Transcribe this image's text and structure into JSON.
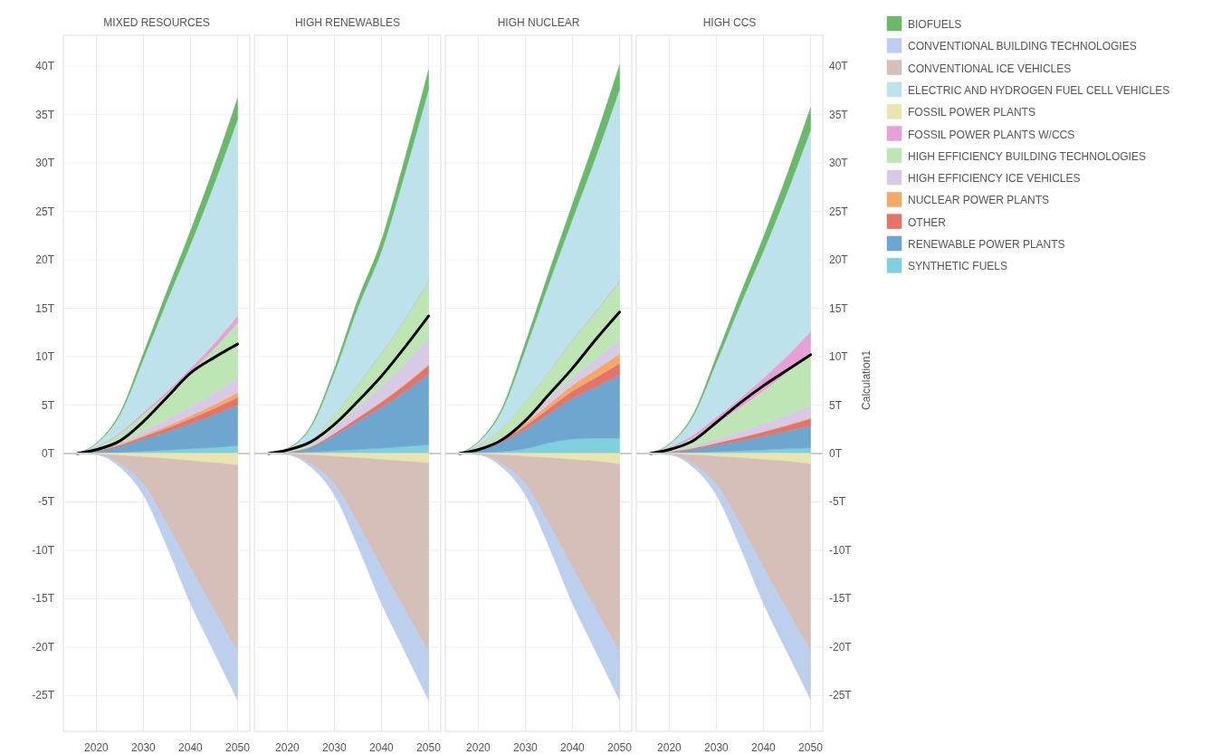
{
  "chart_data": [
    {
      "type": "area",
      "title": "MIXED RESOURCES",
      "stacked": true,
      "grid": true,
      "legend": "right",
      "tick_labels": "y",
      "x": [
        2016,
        2020,
        2025,
        2030,
        2035,
        2040,
        2045,
        2050
      ],
      "xlim": [
        2013,
        2052.6
      ],
      "xticks": [
        2020,
        2030,
        2040,
        2050
      ],
      "ylim": [
        0,
        43.2
      ],
      "yticks": [
        {
          "value": 0,
          "label": "0T"
        },
        {
          "value": 5,
          "label": "5T"
        },
        {
          "value": 10,
          "label": "10T"
        },
        {
          "value": 15,
          "label": "15T"
        },
        {
          "value": 20,
          "label": "20T"
        },
        {
          "value": 25,
          "label": "25T"
        },
        {
          "value": 30,
          "label": "30T"
        },
        {
          "value": 35,
          "label": "35T"
        },
        {
          "value": 40,
          "label": "40T"
        }
      ],
      "series": [
        {
          "name": "SYNTHETIC FUELS",
          "color": "#7dd0dc",
          "values": [
            0,
            0.04,
            0.12,
            0.24,
            0.36,
            0.5,
            0.64,
            0.8
          ]
        },
        {
          "name": "RENEWABLE POWER PLANTS",
          "color": "#6ea6cf",
          "values": [
            0,
            0.21,
            0.63,
            1.26,
            1.89,
            2.6,
            3.36,
            4.2
          ]
        },
        {
          "name": "OTHER",
          "color": "#e3746a",
          "values": [
            0,
            0.04,
            0.12,
            0.24,
            0.36,
            0.5,
            0.64,
            0.8
          ]
        },
        {
          "name": "NUCLEAR POWER PLANTS",
          "color": "#f5a968",
          "values": [
            0,
            0.03,
            0.08,
            0.15,
            0.23,
            0.31,
            0.4,
            0.5
          ]
        },
        {
          "name": "HIGH EFFICIENCY ICE VEHICLES",
          "color": "#d8c9e6",
          "values": [
            0,
            0.08,
            0.23,
            0.45,
            0.68,
            0.93,
            1.2,
            1.5
          ]
        },
        {
          "name": "HIGH EFFICIENCY BUILDING TECHNOLOGIES",
          "color": "#bde6b4",
          "values": [
            0,
            0.29,
            0.86,
            1.71,
            2.57,
            3.53,
            4.56,
            5.7
          ]
        },
        {
          "name": "FOSSIL POWER PLANTS W/CCS",
          "color": "#e7a1d6",
          "values": [
            0,
            0.04,
            0.11,
            0.21,
            0.32,
            0.43,
            0.56,
            0.7
          ]
        },
        {
          "name": "ELECTRIC AND HYDROGEN FUEL CELL VEHICLES",
          "color": "#bde2ec",
          "values": [
            0,
            0.3,
            1.83,
            5.48,
            9.34,
            12.79,
            16.44,
            20.3
          ]
        },
        {
          "name": "BIOFUELS",
          "color": "#6ab86a",
          "values": [
            0,
            0.03,
            0.2,
            0.59,
            1.01,
            1.39,
            1.78,
            2.2
          ]
        },
        {
          "type": "line",
          "color": "#000000",
          "values": [
            0,
            0.4,
            1.3,
            3.3,
            5.8,
            8.3,
            9.9,
            11.3
          ]
        }
      ]
    },
    {
      "type": "area",
      "title": "HIGH RENEWABLES",
      "stacked": true,
      "grid": true,
      "tick_labels": false,
      "x": [
        2016,
        2020,
        2025,
        2030,
        2035,
        2040,
        2045,
        2050
      ],
      "xlim": [
        2013,
        2052.6
      ],
      "xticks": [
        2020,
        2030,
        2040,
        2050
      ],
      "ylim": [
        0,
        43.2
      ],
      "yticks": [
        {
          "value": 0,
          "label": null
        },
        {
          "value": 5,
          "label": null
        },
        {
          "value": 10,
          "label": null
        },
        {
          "value": 15,
          "label": null
        },
        {
          "value": 20,
          "label": null
        },
        {
          "value": 25,
          "label": null
        },
        {
          "value": 30,
          "label": null
        },
        {
          "value": 35,
          "label": null
        },
        {
          "value": 40,
          "label": null
        }
      ],
      "series": [
        {
          "color": "#7dd0dc",
          "values": [
            0,
            0.05,
            0.14,
            0.27,
            0.41,
            0.56,
            0.72,
            0.9
          ]
        },
        {
          "color": "#6ea6cf",
          "values": [
            0,
            0.09,
            0.51,
            1.61,
            2.92,
            4.23,
            5.69,
            7.3
          ]
        },
        {
          "color": "#e3746a",
          "values": [
            0,
            0.01,
            0.06,
            0.2,
            0.36,
            0.52,
            0.7,
            0.9
          ]
        },
        {
          "color": "#f5a968",
          "values": [
            0,
            0,
            0.01,
            0.02,
            0.04,
            0.06,
            0.08,
            0.1
          ]
        },
        {
          "color": "#d8c9e6",
          "values": [
            0,
            0.03,
            0.19,
            0.59,
            1.08,
            1.57,
            2.11,
            2.7
          ]
        },
        {
          "color": "#bde6b4",
          "values": [
            0,
            0.07,
            0.41,
            1.3,
            2.36,
            3.42,
            4.6,
            5.9
          ]
        },
        {
          "color": "#e7a1d6",
          "values": [
            0,
            0,
            0.01,
            0.02,
            0.04,
            0.06,
            0.08,
            0.1
          ]
        },
        {
          "color": "#bde2ec",
          "values": [
            0,
            0.24,
            1.38,
            4.33,
            7.88,
            10.5,
            15.0,
            19.7
          ]
        },
        {
          "color": "#6ab86a",
          "values": [
            0,
            0.02,
            0.14,
            0.44,
            0.8,
            1.1,
            1.56,
            2.0
          ]
        },
        {
          "type": "line",
          "color": "#000000",
          "values": [
            0,
            0.35,
            1.2,
            3.0,
            5.4,
            8.0,
            11.0,
            14.2
          ]
        }
      ]
    },
    {
      "type": "area",
      "title": "HIGH NUCLEAR",
      "stacked": true,
      "grid": true,
      "tick_labels": false,
      "x": [
        2016,
        2020,
        2025,
        2030,
        2035,
        2040,
        2045,
        2050
      ],
      "xlim": [
        2013,
        2052.6
      ],
      "xticks": [
        2020,
        2030,
        2040,
        2050
      ],
      "ylim": [
        0,
        43.2
      ],
      "yticks": [
        {
          "value": 0,
          "label": null
        },
        {
          "value": 5,
          "label": null
        },
        {
          "value": 10,
          "label": null
        },
        {
          "value": 15,
          "label": null
        },
        {
          "value": 20,
          "label": null
        },
        {
          "value": 25,
          "label": null
        },
        {
          "value": 30,
          "label": null
        },
        {
          "value": 35,
          "label": null
        },
        {
          "value": 40,
          "label": null
        }
      ],
      "series": [
        {
          "color": "#7dd0dc",
          "values": [
            0,
            0.05,
            0.2,
            0.5,
            1.1,
            1.5,
            1.6,
            1.6
          ]
        },
        {
          "color": "#6ea6cf",
          "values": [
            0,
            0.33,
            0.98,
            2.0,
            3.0,
            4.2,
            5.3,
            6.5
          ]
        },
        {
          "color": "#e3746a",
          "values": [
            0,
            0.06,
            0.18,
            0.36,
            0.54,
            0.74,
            0.96,
            1.2
          ]
        },
        {
          "color": "#f5a968",
          "values": [
            0,
            0.05,
            0.15,
            0.3,
            0.45,
            0.62,
            0.8,
            1.0
          ]
        },
        {
          "color": "#d8c9e6",
          "values": [
            0,
            0.07,
            0.21,
            0.42,
            0.63,
            0.87,
            1.12,
            1.4
          ]
        },
        {
          "color": "#bde6b4",
          "values": [
            0,
            0.31,
            0.92,
            1.83,
            2.75,
            3.78,
            4.88,
            6.1
          ]
        },
        {
          "color": "#e7a1d6",
          "values": [
            0,
            0,
            0.01,
            0.02,
            0.04,
            0.06,
            0.08,
            0.1
          ]
        },
        {
          "color": "#bde2ec",
          "values": [
            0,
            0.3,
            1.77,
            5.32,
            9.06,
            12.41,
            15.96,
            19.7
          ]
        },
        {
          "color": "#6ab86a",
          "values": [
            0,
            0.04,
            0.23,
            0.68,
            1.15,
            1.58,
            2.03,
            2.5
          ]
        },
        {
          "type": "line",
          "color": "#000000",
          "values": [
            0,
            0.4,
            1.4,
            3.4,
            6.1,
            8.8,
            11.8,
            14.6
          ]
        }
      ]
    },
    {
      "type": "area",
      "title": "HIGH CCS",
      "stacked": true,
      "grid": true,
      "tick_labels": "y",
      "ylabel": "Calculation1",
      "x": [
        2016,
        2020,
        2025,
        2030,
        2035,
        2040,
        2045,
        2050
      ],
      "xlim": [
        2013,
        2052.6
      ],
      "xticks": [
        2020,
        2030,
        2040,
        2050
      ],
      "ylim": [
        0,
        43.2
      ],
      "yticks": [
        {
          "value": 0,
          "label": "0T"
        },
        {
          "value": 5,
          "label": "5T"
        },
        {
          "value": 10,
          "label": "10T"
        },
        {
          "value": 15,
          "label": "15T"
        },
        {
          "value": 20,
          "label": "20T"
        },
        {
          "value": 25,
          "label": "25T"
        },
        {
          "value": 30,
          "label": "30T"
        },
        {
          "value": 35,
          "label": "35T"
        },
        {
          "value": 40,
          "label": "40T"
        }
      ],
      "series": [
        {
          "color": "#7dd0dc",
          "values": [
            0,
            0.03,
            0.09,
            0.18,
            0.27,
            0.37,
            0.48,
            0.6
          ]
        },
        {
          "color": "#6ea6cf",
          "values": [
            0,
            0.12,
            0.35,
            0.69,
            1.04,
            1.43,
            1.84,
            2.3
          ]
        },
        {
          "color": "#e3746a",
          "values": [
            0,
            0.04,
            0.11,
            0.21,
            0.32,
            0.43,
            0.56,
            0.7
          ]
        },
        {
          "color": "#f5a968",
          "values": [
            0,
            0,
            0.01,
            0.02,
            0.04,
            0.06,
            0.08,
            0.1
          ]
        },
        {
          "color": "#d8c9e6",
          "values": [
            0,
            0.07,
            0.2,
            0.39,
            0.59,
            0.81,
            1.04,
            1.3
          ]
        },
        {
          "color": "#bde6b4",
          "values": [
            0,
            0.28,
            0.83,
            1.65,
            2.48,
            3.41,
            4.4,
            5.5
          ]
        },
        {
          "color": "#e7a1d6",
          "values": [
            0,
            0.11,
            0.32,
            0.63,
            0.95,
            1.3,
            1.68,
            2.1
          ]
        },
        {
          "color": "#bde2ec",
          "values": [
            0,
            0.31,
            1.87,
            5.62,
            9.57,
            13.1,
            16.85,
            20.8
          ]
        },
        {
          "color": "#6ab86a",
          "values": [
            0,
            0.03,
            0.21,
            0.62,
            1.06,
            1.45,
            1.86,
            2.3
          ]
        },
        {
          "type": "line",
          "color": "#000000",
          "values": [
            0,
            0.4,
            1.3,
            3.2,
            5.2,
            7.0,
            8.6,
            10.2
          ]
        }
      ]
    },
    {
      "type": "area",
      "stacked": true,
      "grid": true,
      "legend": "right",
      "x": [
        2016,
        2020,
        2025,
        2030,
        2035,
        2040,
        2045,
        2050
      ],
      "xlim": [
        2013,
        2052.6
      ],
      "xticks": [
        2020,
        2030,
        2040,
        2050
      ],
      "ylim": [
        -28.7,
        0
      ],
      "yticks": [
        {
          "value": -25,
          "label": "-25T"
        },
        {
          "value": -20,
          "label": "-20T"
        },
        {
          "value": -15,
          "label": "-15T"
        },
        {
          "value": -10,
          "label": "-10T"
        },
        {
          "value": -5,
          "label": "-5T"
        }
      ],
      "series": [
        {
          "name": "FOSSIL POWER PLANTS",
          "color": "#e8e5b0",
          "values": [
            0,
            -0.06,
            -0.18,
            -0.36,
            -0.54,
            -0.74,
            -0.96,
            -1.2
          ]
        },
        {
          "name": "CONVENTIONAL ICE VEHICLES",
          "color": "#d6bfb8",
          "values": [
            0,
            -0.04,
            -0.92,
            -2.84,
            -6.76,
            -11.06,
            -15.24,
            -19.3
          ]
        },
        {
          "name": "CONVENTIONAL BUILDING TECHNOLOGIES",
          "color": "#bccfec",
          "values": [
            0,
            -0.02,
            -0.3,
            -1.1,
            -2.3,
            -3.7,
            -4.3,
            -5.0
          ]
        }
      ]
    },
    {
      "type": "area",
      "stacked": true,
      "grid": true,
      "tick_labels": "x",
      "x": [
        2016,
        2020,
        2025,
        2030,
        2035,
        2040,
        2045,
        2050
      ],
      "xlim": [
        2013,
        2052.6
      ],
      "xticks": [
        2020,
        2030,
        2040,
        2050
      ],
      "ylim": [
        -28.7,
        0
      ],
      "yticks": [
        {
          "value": -25,
          "label": null
        },
        {
          "value": -20,
          "label": null
        },
        {
          "value": -15,
          "label": null
        },
        {
          "value": -10,
          "label": null
        },
        {
          "value": -5,
          "label": null
        }
      ],
      "series": [
        {
          "color": "#e8e5b0",
          "values": [
            0,
            -0.05,
            -0.15,
            -0.3,
            -0.45,
            -0.62,
            -0.8,
            -1.0
          ]
        },
        {
          "color": "#d6bfb8",
          "values": [
            0,
            -0.05,
            -0.95,
            -2.9,
            -6.85,
            -11.18,
            -15.4,
            -19.5
          ]
        },
        {
          "color": "#bccfec",
          "values": [
            0,
            -0.02,
            -0.3,
            -1.1,
            -2.3,
            -3.7,
            -4.3,
            -5.0
          ]
        }
      ]
    },
    {
      "type": "area",
      "stacked": true,
      "grid": true,
      "tick_labels": "x",
      "x": [
        2016,
        2020,
        2025,
        2030,
        2035,
        2040,
        2045,
        2050
      ],
      "xlim": [
        2013,
        2052.6
      ],
      "xticks": [
        2020,
        2030,
        2040,
        2050
      ],
      "ylim": [
        -28.7,
        0
      ],
      "yticks": [
        {
          "value": -25,
          "label": null
        },
        {
          "value": -20,
          "label": null
        },
        {
          "value": -15,
          "label": null
        },
        {
          "value": -10,
          "label": null
        },
        {
          "value": -5,
          "label": null
        }
      ],
      "series": [
        {
          "color": "#e8e5b0",
          "values": [
            0,
            -0.05,
            -0.15,
            -0.3,
            -0.45,
            -0.62,
            -0.8,
            -1.1
          ]
        },
        {
          "color": "#d6bfb8",
          "values": [
            0,
            -0.05,
            -0.95,
            -2.9,
            -6.85,
            -11.18,
            -15.4,
            -19.4
          ]
        },
        {
          "color": "#bccfec",
          "values": [
            0,
            -0.02,
            -0.3,
            -1.1,
            -2.3,
            -3.7,
            -4.3,
            -5.0
          ]
        }
      ]
    },
    {
      "type": "area",
      "stacked": true,
      "grid": true,
      "x": [
        2016,
        2020,
        2025,
        2030,
        2035,
        2040,
        2045,
        2050
      ],
      "xlim": [
        2013,
        2052.6
      ],
      "xticks": [
        2020,
        2030,
        2040,
        2050
      ],
      "ylim": [
        -28.7,
        0
      ],
      "yticks": [
        {
          "value": -25,
          "label": "-25T"
        },
        {
          "value": -20,
          "label": "-20T"
        },
        {
          "value": -15,
          "label": "-15T"
        },
        {
          "value": -10,
          "label": "-10T"
        },
        {
          "value": -5,
          "label": "-5T"
        }
      ],
      "series": [
        {
          "color": "#e8e5b0",
          "values": [
            0,
            -0.05,
            -0.15,
            -0.3,
            -0.45,
            -0.62,
            -0.8,
            -1.1
          ]
        },
        {
          "color": "#d6bfb8",
          "values": [
            0,
            -0.05,
            -0.95,
            -2.9,
            -6.85,
            -11.18,
            -15.4,
            -19.3
          ]
        },
        {
          "color": "#bccfec",
          "values": [
            0,
            -0.02,
            -0.3,
            -1.1,
            -2.3,
            -3.7,
            -4.3,
            -5.0
          ]
        }
      ]
    }
  ]
}
